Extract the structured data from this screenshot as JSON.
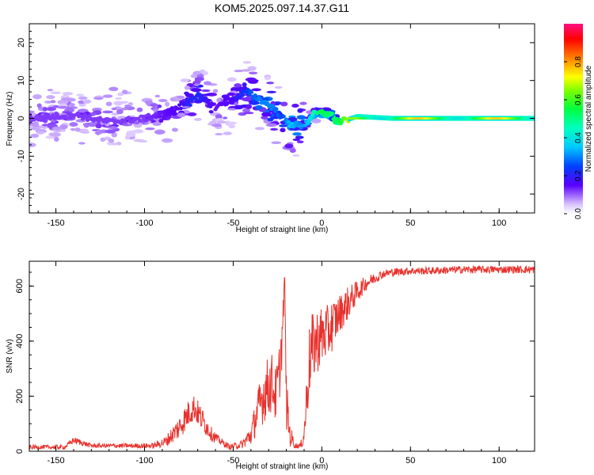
{
  "title": "KOM5.2025.097.14.37.G11",
  "chart_data": [
    {
      "type": "heatmap",
      "xlabel": "Height of straight line (km)",
      "ylabel": "Frequency (Hz)",
      "xlim": [
        -165,
        120
      ],
      "ylim": [
        -25,
        25
      ],
      "xticks": [
        -150,
        -100,
        -50,
        0,
        50,
        100
      ],
      "yticks": [
        -20,
        -10,
        0,
        10,
        20
      ],
      "colorbar": {
        "label": "Normalized spectral amplitude",
        "range": [
          0,
          1
        ],
        "ticks": [
          0.0,
          0.2,
          0.4,
          0.6,
          0.8
        ],
        "tick_labels": [
          "0.0",
          "0.2",
          "0.4",
          "0.6",
          "0.8"
        ]
      },
      "ridge": {
        "x": [
          -160,
          -140,
          -120,
          -100,
          -90,
          -80,
          -75,
          -70,
          -60,
          -50,
          -42,
          -35,
          -28,
          -22,
          -18,
          -12,
          -8,
          -5,
          0,
          5,
          10,
          20,
          40,
          60,
          80,
          100,
          120
        ],
        "freq": [
          0,
          1,
          -1,
          0,
          1,
          3,
          5,
          6,
          3,
          5,
          7,
          5,
          3,
          0,
          -1.5,
          -2,
          -1,
          1,
          1.5,
          1,
          -1,
          0.5,
          0,
          0,
          0,
          0,
          0
        ],
        "amplitude": [
          0.12,
          0.12,
          0.12,
          0.12,
          0.14,
          0.16,
          0.2,
          0.22,
          0.14,
          0.16,
          0.25,
          0.3,
          0.3,
          0.25,
          0.35,
          0.3,
          0.35,
          0.45,
          0.55,
          0.5,
          0.55,
          0.8,
          0.78,
          0.75,
          0.8,
          0.75,
          0.8
        ]
      }
    },
    {
      "type": "line",
      "xlabel": "Height of straight line (km)",
      "ylabel": "SNR (v/v)",
      "xlim": [
        -165,
        120
      ],
      "ylim": [
        0,
        690
      ],
      "xticks": [
        -150,
        -100,
        -50,
        0,
        50,
        100
      ],
      "yticks": [
        0,
        200,
        400,
        600
      ],
      "color": "#e8322d",
      "series": [
        {
          "x": [
            -165,
            -145,
            -140,
            -130,
            -110,
            -95,
            -88,
            -80,
            -75,
            -72,
            -68,
            -62,
            -58,
            -52,
            -45,
            -40,
            -36,
            -32,
            -28,
            -26,
            -24,
            -22,
            -21,
            -20,
            -18,
            -15,
            -12,
            -10,
            -8,
            -7,
            -5,
            -3,
            0,
            3,
            5,
            10,
            15,
            20,
            25,
            30,
            35,
            40,
            50,
            60,
            80,
            100,
            120
          ],
          "y": [
            15,
            15,
            40,
            20,
            20,
            20,
            35,
            90,
            140,
            160,
            120,
            60,
            40,
            15,
            25,
            60,
            150,
            220,
            250,
            200,
            280,
            450,
            630,
            180,
            60,
            20,
            20,
            60,
            250,
            330,
            380,
            400,
            420,
            430,
            450,
            500,
            540,
            580,
            610,
            630,
            645,
            650,
            655,
            655,
            660,
            660,
            660
          ],
          "noise": [
            8,
            8,
            12,
            8,
            8,
            10,
            20,
            45,
            50,
            50,
            45,
            25,
            15,
            10,
            15,
            40,
            80,
            110,
            110,
            100,
            110,
            100,
            0,
            100,
            45,
            10,
            10,
            40,
            120,
            130,
            130,
            120,
            110,
            100,
            100,
            70,
            60,
            40,
            25,
            20,
            15,
            15,
            14,
            14,
            14,
            14,
            14
          ]
        }
      ]
    }
  ]
}
